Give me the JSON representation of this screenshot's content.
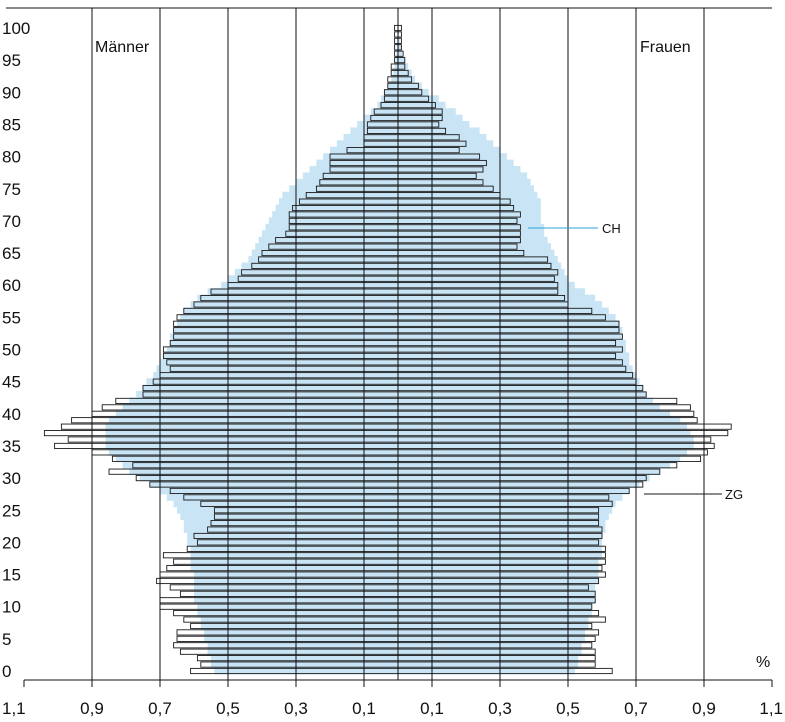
{
  "chart_data": {
    "type": "bar",
    "subtype": "population-pyramid",
    "x_unit": "%",
    "x_tick_labels": [
      "1,1",
      "0,9",
      "0,7",
      "0,5",
      "0,3",
      "0,1",
      "0,1",
      "0,3",
      "0,5",
      "0,7",
      "0,9",
      "1,1"
    ],
    "y_tick_labels": [
      "0",
      "5",
      "10",
      "15",
      "20",
      "25",
      "30",
      "35",
      "40",
      "45",
      "50",
      "55",
      "60",
      "65",
      "70",
      "75",
      "80",
      "85",
      "90",
      "95",
      "100"
    ],
    "left_label": "Männer",
    "right_label": "Frauen",
    "annotations": {
      "ch": "CH",
      "zg": "ZG"
    },
    "colors": {
      "ch_fill": "#c8e4f5",
      "zg_outline": "#1a1a1a",
      "ch_leader": "#29a3d9",
      "grid": "#111111"
    },
    "xlim": [
      -1.1,
      1.1
    ],
    "ylim": [
      0,
      100
    ],
    "ages": [
      0,
      1,
      2,
      3,
      4,
      5,
      6,
      7,
      8,
      9,
      10,
      11,
      12,
      13,
      14,
      15,
      16,
      17,
      18,
      19,
      20,
      21,
      22,
      23,
      24,
      25,
      26,
      27,
      28,
      29,
      30,
      31,
      32,
      33,
      34,
      35,
      36,
      37,
      38,
      39,
      40,
      41,
      42,
      43,
      44,
      45,
      46,
      47,
      48,
      49,
      50,
      51,
      52,
      53,
      54,
      55,
      56,
      57,
      58,
      59,
      60,
      61,
      62,
      63,
      64,
      65,
      66,
      67,
      68,
      69,
      70,
      71,
      72,
      73,
      74,
      75,
      76,
      77,
      78,
      79,
      80,
      81,
      82,
      83,
      84,
      85,
      86,
      87,
      88,
      89,
      90,
      91,
      92,
      93,
      94,
      95,
      96,
      97,
      98,
      99,
      100
    ],
    "series": [
      {
        "name": "CH",
        "role": "shaded",
        "male": [
          0.54,
          0.55,
          0.55,
          0.56,
          0.56,
          0.57,
          0.57,
          0.58,
          0.58,
          0.59,
          0.59,
          0.6,
          0.6,
          0.6,
          0.6,
          0.6,
          0.61,
          0.61,
          0.61,
          0.61,
          0.62,
          0.62,
          0.63,
          0.63,
          0.64,
          0.65,
          0.66,
          0.68,
          0.7,
          0.73,
          0.76,
          0.79,
          0.81,
          0.83,
          0.85,
          0.86,
          0.86,
          0.86,
          0.86,
          0.85,
          0.83,
          0.81,
          0.79,
          0.77,
          0.75,
          0.74,
          0.72,
          0.71,
          0.7,
          0.69,
          0.68,
          0.67,
          0.67,
          0.66,
          0.65,
          0.64,
          0.63,
          0.61,
          0.59,
          0.56,
          0.52,
          0.5,
          0.48,
          0.46,
          0.44,
          0.43,
          0.42,
          0.41,
          0.4,
          0.39,
          0.38,
          0.37,
          0.36,
          0.35,
          0.34,
          0.32,
          0.3,
          0.28,
          0.26,
          0.24,
          0.22,
          0.2,
          0.18,
          0.16,
          0.14,
          0.12,
          0.1,
          0.08,
          0.06,
          0.05,
          0.04,
          0.03,
          0.02,
          0.015,
          0.01,
          0.007,
          0.005,
          0.003,
          0.002,
          0.001,
          0.001
        ],
        "female": [
          0.52,
          0.53,
          0.53,
          0.54,
          0.54,
          0.55,
          0.55,
          0.56,
          0.56,
          0.57,
          0.57,
          0.58,
          0.58,
          0.58,
          0.59,
          0.59,
          0.59,
          0.59,
          0.6,
          0.6,
          0.6,
          0.6,
          0.61,
          0.61,
          0.62,
          0.63,
          0.64,
          0.66,
          0.68,
          0.71,
          0.74,
          0.77,
          0.8,
          0.83,
          0.85,
          0.87,
          0.87,
          0.86,
          0.85,
          0.83,
          0.8,
          0.77,
          0.75,
          0.73,
          0.72,
          0.71,
          0.7,
          0.69,
          0.68,
          0.68,
          0.67,
          0.67,
          0.66,
          0.66,
          0.65,
          0.64,
          0.62,
          0.6,
          0.58,
          0.55,
          0.52,
          0.5,
          0.49,
          0.48,
          0.47,
          0.46,
          0.45,
          0.44,
          0.43,
          0.43,
          0.42,
          0.42,
          0.42,
          0.42,
          0.41,
          0.4,
          0.39,
          0.38,
          0.36,
          0.34,
          0.32,
          0.3,
          0.28,
          0.26,
          0.24,
          0.21,
          0.19,
          0.17,
          0.14,
          0.12,
          0.09,
          0.07,
          0.05,
          0.04,
          0.03,
          0.02,
          0.012,
          0.008,
          0.005,
          0.003,
          0.002
        ]
      },
      {
        "name": "ZG",
        "role": "outline",
        "male": [
          0.61,
          0.58,
          0.59,
          0.64,
          0.66,
          0.65,
          0.65,
          0.61,
          0.63,
          0.66,
          0.7,
          0.7,
          0.64,
          0.67,
          0.71,
          0.7,
          0.68,
          0.66,
          0.69,
          0.62,
          0.59,
          0.6,
          0.56,
          0.55,
          0.54,
          0.54,
          0.58,
          0.63,
          0.67,
          0.73,
          0.77,
          0.85,
          0.78,
          0.84,
          0.9,
          1.01,
          0.97,
          1.04,
          0.99,
          0.96,
          0.9,
          0.87,
          0.83,
          0.75,
          0.75,
          0.72,
          0.7,
          0.67,
          0.68,
          0.69,
          0.69,
          0.67,
          0.66,
          0.66,
          0.66,
          0.65,
          0.63,
          0.6,
          0.58,
          0.55,
          0.5,
          0.47,
          0.46,
          0.43,
          0.41,
          0.4,
          0.38,
          0.36,
          0.33,
          0.32,
          0.32,
          0.32,
          0.31,
          0.29,
          0.27,
          0.24,
          0.23,
          0.22,
          0.2,
          0.2,
          0.2,
          0.15,
          0.1,
          0.1,
          0.09,
          0.09,
          0.08,
          0.07,
          0.05,
          0.04,
          0.04,
          0.03,
          0.03,
          0.02,
          0.02,
          0.01,
          0.01,
          0.01,
          0.01,
          0.01,
          0.01
        ],
        "female": [
          0.63,
          0.58,
          0.58,
          0.58,
          0.57,
          0.58,
          0.59,
          0.57,
          0.61,
          0.59,
          0.57,
          0.58,
          0.58,
          0.56,
          0.59,
          0.61,
          0.6,
          0.61,
          0.61,
          0.61,
          0.59,
          0.6,
          0.6,
          0.59,
          0.59,
          0.59,
          0.63,
          0.62,
          0.68,
          0.72,
          0.73,
          0.77,
          0.82,
          0.89,
          0.91,
          0.93,
          0.92,
          0.97,
          0.98,
          0.88,
          0.87,
          0.86,
          0.82,
          0.73,
          0.72,
          0.7,
          0.69,
          0.67,
          0.66,
          0.64,
          0.66,
          0.64,
          0.66,
          0.65,
          0.65,
          0.61,
          0.57,
          0.5,
          0.49,
          0.47,
          0.47,
          0.46,
          0.47,
          0.45,
          0.44,
          0.37,
          0.35,
          0.36,
          0.36,
          0.36,
          0.35,
          0.36,
          0.34,
          0.33,
          0.3,
          0.28,
          0.25,
          0.23,
          0.25,
          0.26,
          0.24,
          0.18,
          0.2,
          0.18,
          0.14,
          0.12,
          0.13,
          0.13,
          0.11,
          0.09,
          0.07,
          0.06,
          0.04,
          0.03,
          0.02,
          0.02,
          0.015,
          0.01,
          0.01,
          0.01,
          0.01
        ]
      }
    ]
  }
}
